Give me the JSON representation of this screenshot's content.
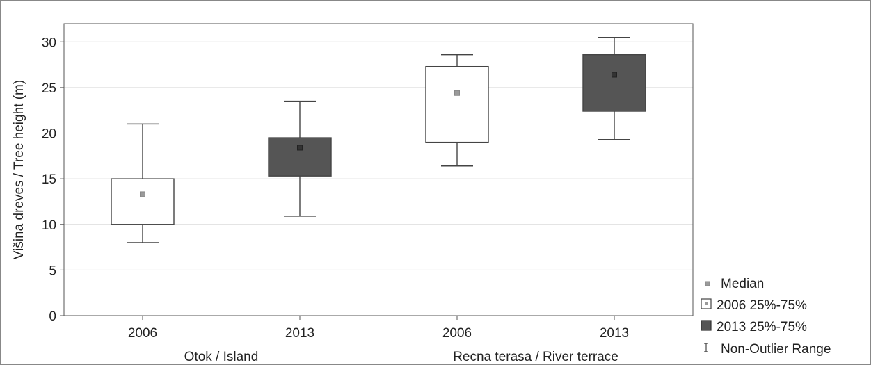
{
  "chart_data": {
    "type": "box",
    "ylabel": "Višina dreves / Tree height (m)",
    "ylim": [
      0,
      32
    ],
    "yticks": [
      0,
      5,
      10,
      15,
      20,
      25,
      30
    ],
    "grid": "horizontal",
    "legend_position": "right-bottom",
    "groups": [
      {
        "label": "Otok / Island",
        "categories": [
          "2006",
          "2013"
        ]
      },
      {
        "label": "Recna terasa / River terrace",
        "categories": [
          "2006",
          "2013"
        ]
      }
    ],
    "boxes": [
      {
        "group": "Otok / Island",
        "year": "2006",
        "whisker_low": 8.0,
        "q1": 10.0,
        "median": 13.3,
        "q3": 15.0,
        "whisker_high": 21.0
      },
      {
        "group": "Otok / Island",
        "year": "2013",
        "whisker_low": 10.9,
        "q1": 15.3,
        "median": 18.4,
        "q3": 19.5,
        "whisker_high": 23.5
      },
      {
        "group": "Recna terasa / River terrace",
        "year": "2006",
        "whisker_low": 16.4,
        "q1": 19.0,
        "median": 24.4,
        "q3": 27.3,
        "whisker_high": 28.6
      },
      {
        "group": "Recna terasa / River terrace",
        "year": "2013",
        "whisker_low": 19.3,
        "q1": 22.4,
        "median": 26.4,
        "q3": 28.6,
        "whisker_high": 30.5
      }
    ],
    "legend": [
      {
        "key": "median",
        "label": "Median"
      },
      {
        "key": "box2006",
        "label": "2006 25%-75%"
      },
      {
        "key": "box2013",
        "label": "2013 25%-75%"
      },
      {
        "key": "range",
        "label": "Non-Outlier Range"
      }
    ],
    "colors": {
      "box2006_fill": "#ffffff",
      "box2013_fill": "#555555",
      "stroke": "#444444",
      "median_2006": "#9a9a9a",
      "median_2013": "#333333",
      "grid": "#dcdcdc"
    }
  }
}
